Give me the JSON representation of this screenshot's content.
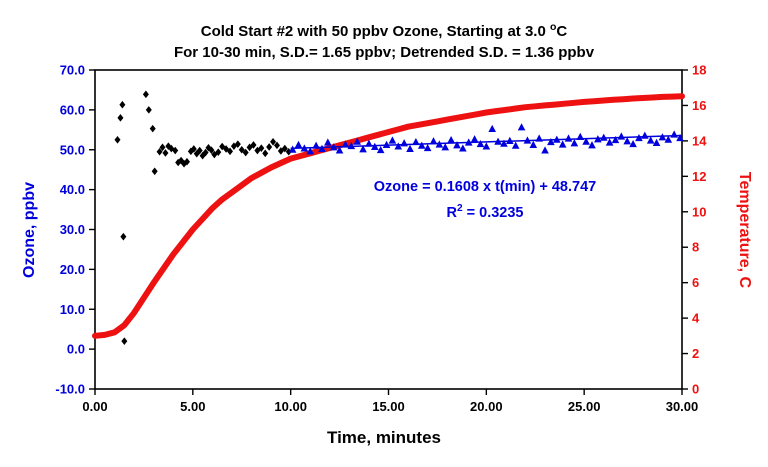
{
  "chart_data": {
    "type": "scatter",
    "title": {
      "line1_prefix": "Cold Start #2 with 50 ppbv Ozone, Starting at 3.0 ",
      "line1_sup": "o",
      "line1_suffix": "C",
      "line2": "For 10-30 min, S.D.= 1.65 ppbv; Detrended  S.D. = 1.36 ppbv"
    },
    "xlabel": "Time, minutes",
    "ylabel_left": "Ozone, ppbv",
    "ylabel_right": "Temperature, C",
    "axes": {
      "x_range": [
        0,
        30
      ],
      "x_ticks": [
        "0.00",
        "5.00",
        "10.00",
        "15.00",
        "20.00",
        "25.00",
        "30.00"
      ],
      "y_left_range": [
        -10,
        70
      ],
      "y_left_ticks": [
        "70.0",
        "60.0",
        "50.0",
        "40.0",
        "30.0",
        "20.0",
        "10.0",
        "0.0",
        "-10.0"
      ],
      "y_right_range": [
        0,
        18
      ],
      "y_right_ticks": [
        "18",
        "16",
        "14",
        "12",
        "10",
        "8",
        "6",
        "4",
        "2",
        "0"
      ],
      "grid": false
    },
    "annotation": {
      "line1": "Ozone = 0.1608 x t(min) + 48.747",
      "line2_prefix": "R",
      "line2_sup": "2",
      "line2_suffix": " = 0.3235"
    },
    "colors": {
      "ozone_blue": "#0000dd",
      "temperature_red": "#ee1111",
      "black": "#000000"
    },
    "regression": {
      "slope": 0.1608,
      "intercept": 48.747,
      "r_squared": 0.3235,
      "x_start": 10,
      "x_end": 30
    },
    "series": [
      {
        "name": "ozone-startup-diamonds",
        "marker": "diamond",
        "color": "#000000",
        "points": [
          [
            1.15,
            52.5
          ],
          [
            1.3,
            58.0
          ],
          [
            1.4,
            61.3
          ],
          [
            1.45,
            28.2
          ],
          [
            1.5,
            2.0
          ],
          [
            2.6,
            63.9
          ],
          [
            2.75,
            60.0
          ],
          [
            2.95,
            55.3
          ],
          [
            3.05,
            44.6
          ],
          [
            3.3,
            49.5
          ],
          [
            3.45,
            50.6
          ],
          [
            3.6,
            49.2
          ],
          [
            3.75,
            50.9
          ],
          [
            3.9,
            50.3
          ],
          [
            4.1,
            49.8
          ],
          [
            4.25,
            46.8
          ],
          [
            4.4,
            47.3
          ],
          [
            4.55,
            46.5
          ],
          [
            4.7,
            47.0
          ],
          [
            4.9,
            49.6
          ],
          [
            5.05,
            50.2
          ],
          [
            5.2,
            49.0
          ],
          [
            5.35,
            49.8
          ],
          [
            5.5,
            48.5
          ],
          [
            5.65,
            49.3
          ],
          [
            5.8,
            50.5
          ],
          [
            5.95,
            49.9
          ],
          [
            6.1,
            48.8
          ],
          [
            6.3,
            49.4
          ],
          [
            6.5,
            50.8
          ],
          [
            6.7,
            50.2
          ],
          [
            6.9,
            49.6
          ],
          [
            7.1,
            50.9
          ],
          [
            7.3,
            51.4
          ],
          [
            7.5,
            50.0
          ],
          [
            7.7,
            49.3
          ],
          [
            7.9,
            50.6
          ],
          [
            8.1,
            51.2
          ],
          [
            8.3,
            49.8
          ],
          [
            8.5,
            50.4
          ],
          [
            8.7,
            49.1
          ],
          [
            8.9,
            50.7
          ],
          [
            9.1,
            52.0
          ],
          [
            9.3,
            51.1
          ],
          [
            9.5,
            49.7
          ],
          [
            9.7,
            50.3
          ],
          [
            9.9,
            49.5
          ]
        ]
      },
      {
        "name": "ozone-steady-triangles",
        "marker": "triangle",
        "color": "#0000dd",
        "points": [
          [
            10.1,
            50.0
          ],
          [
            10.4,
            51.2
          ],
          [
            10.7,
            50.3
          ],
          [
            11.0,
            49.6
          ],
          [
            11.3,
            51.0
          ],
          [
            11.6,
            50.2
          ],
          [
            11.9,
            51.8
          ],
          [
            12.2,
            50.6
          ],
          [
            12.5,
            49.8
          ],
          [
            12.8,
            51.3
          ],
          [
            13.1,
            50.9
          ],
          [
            13.4,
            52.0
          ],
          [
            13.7,
            50.1
          ],
          [
            14.0,
            51.5
          ],
          [
            14.3,
            50.7
          ],
          [
            14.6,
            49.9
          ],
          [
            14.9,
            51.2
          ],
          [
            15.2,
            52.3
          ],
          [
            15.5,
            50.8
          ],
          [
            15.8,
            51.6
          ],
          [
            16.1,
            50.2
          ],
          [
            16.4,
            51.9
          ],
          [
            16.7,
            51.0
          ],
          [
            17.0,
            50.4
          ],
          [
            17.3,
            52.1
          ],
          [
            17.6,
            51.3
          ],
          [
            17.9,
            50.6
          ],
          [
            18.2,
            52.4
          ],
          [
            18.5,
            51.1
          ],
          [
            18.8,
            50.3
          ],
          [
            19.1,
            51.8
          ],
          [
            19.4,
            52.6
          ],
          [
            19.7,
            51.4
          ],
          [
            20.0,
            50.8
          ],
          [
            20.3,
            55.2
          ],
          [
            20.6,
            52.0
          ],
          [
            20.9,
            51.5
          ],
          [
            21.2,
            52.2
          ],
          [
            21.5,
            51.0
          ],
          [
            21.8,
            55.6
          ],
          [
            22.1,
            52.3
          ],
          [
            22.4,
            51.2
          ],
          [
            22.7,
            52.8
          ],
          [
            23.0,
            49.8
          ],
          [
            23.3,
            51.9
          ],
          [
            23.6,
            52.5
          ],
          [
            23.9,
            51.3
          ],
          [
            24.2,
            52.8
          ],
          [
            24.5,
            51.6
          ],
          [
            24.8,
            53.2
          ],
          [
            25.1,
            52.0
          ],
          [
            25.4,
            51.1
          ],
          [
            25.7,
            52.6
          ],
          [
            26.0,
            53.0
          ],
          [
            26.3,
            51.8
          ],
          [
            26.6,
            52.4
          ],
          [
            26.9,
            53.3
          ],
          [
            27.2,
            52.1
          ],
          [
            27.5,
            51.4
          ],
          [
            27.8,
            52.9
          ],
          [
            28.1,
            53.5
          ],
          [
            28.4,
            52.3
          ],
          [
            28.7,
            51.7
          ],
          [
            29.0,
            53.1
          ],
          [
            29.3,
            52.5
          ],
          [
            29.6,
            53.8
          ],
          [
            29.9,
            52.9
          ]
        ]
      },
      {
        "name": "temperature",
        "marker": "line",
        "color": "#ee1111",
        "width": 6,
        "points": [
          [
            0,
            3.0
          ],
          [
            0.5,
            3.05
          ],
          [
            1,
            3.2
          ],
          [
            1.5,
            3.6
          ],
          [
            2,
            4.3
          ],
          [
            2.5,
            5.15
          ],
          [
            3,
            6.0
          ],
          [
            3.5,
            6.8
          ],
          [
            4,
            7.6
          ],
          [
            4.5,
            8.3
          ],
          [
            5,
            9.0
          ],
          [
            5.5,
            9.6
          ],
          [
            6,
            10.2
          ],
          [
            6.5,
            10.7
          ],
          [
            7,
            11.1
          ],
          [
            7.5,
            11.5
          ],
          [
            8,
            11.9
          ],
          [
            8.5,
            12.2
          ],
          [
            9,
            12.5
          ],
          [
            9.5,
            12.75
          ],
          [
            10,
            13.0
          ],
          [
            10.5,
            13.15
          ],
          [
            11,
            13.3
          ],
          [
            11.5,
            13.45
          ],
          [
            12,
            13.6
          ],
          [
            12.5,
            13.75
          ],
          [
            13,
            13.9
          ],
          [
            13.5,
            14.05
          ],
          [
            14,
            14.2
          ],
          [
            14.5,
            14.35
          ],
          [
            15,
            14.5
          ],
          [
            15.5,
            14.65
          ],
          [
            16,
            14.8
          ],
          [
            16.5,
            14.9
          ],
          [
            17,
            15.0
          ],
          [
            17.5,
            15.1
          ],
          [
            18,
            15.2
          ],
          [
            18.5,
            15.3
          ],
          [
            19,
            15.4
          ],
          [
            19.5,
            15.5
          ],
          [
            20,
            15.6
          ],
          [
            20.5,
            15.68
          ],
          [
            21,
            15.75
          ],
          [
            21.5,
            15.83
          ],
          [
            22,
            15.9
          ],
          [
            22.5,
            15.95
          ],
          [
            23,
            16.0
          ],
          [
            23.5,
            16.05
          ],
          [
            24,
            16.1
          ],
          [
            24.5,
            16.15
          ],
          [
            25,
            16.2
          ],
          [
            25.5,
            16.24
          ],
          [
            26,
            16.28
          ],
          [
            26.5,
            16.32
          ],
          [
            27,
            16.35
          ],
          [
            27.5,
            16.39
          ],
          [
            28,
            16.42
          ],
          [
            28.5,
            16.45
          ],
          [
            29,
            16.48
          ],
          [
            29.5,
            16.5
          ],
          [
            30,
            16.52
          ]
        ]
      }
    ]
  }
}
